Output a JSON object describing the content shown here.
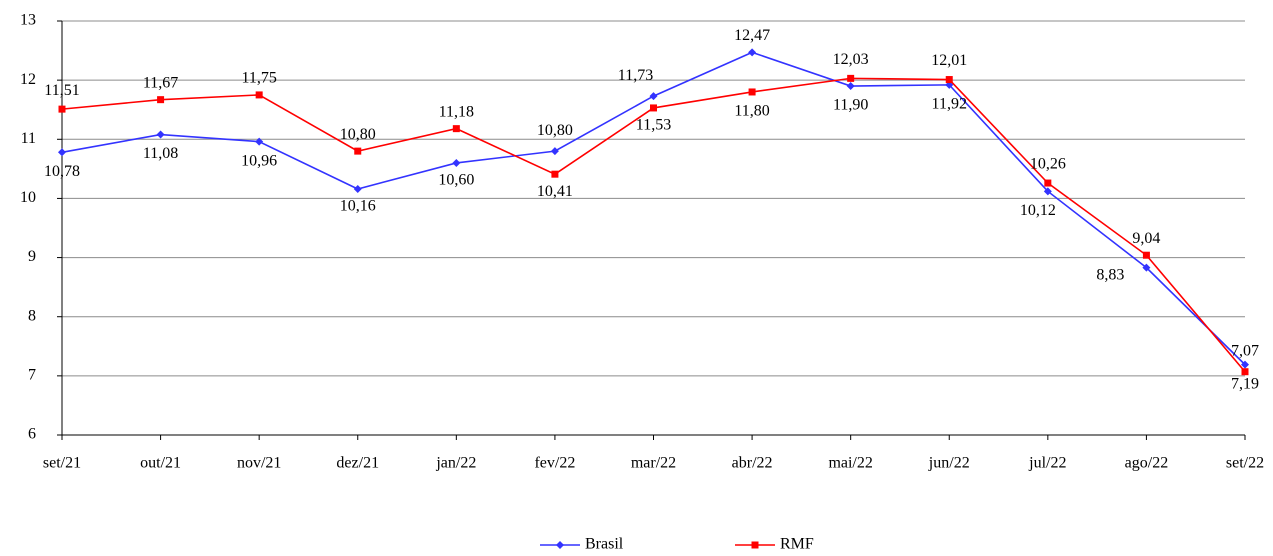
{
  "chart_data": {
    "type": "line",
    "categories": [
      "set/21",
      "out/21",
      "nov/21",
      "dez/21",
      "jan/22",
      "fev/22",
      "mar/22",
      "abr/22",
      "mai/22",
      "jun/22",
      "jul/22",
      "ago/22",
      "set/22"
    ],
    "series": [
      {
        "name": "Brasil",
        "color": "#3333ff",
        "values": [
          10.78,
          11.08,
          10.96,
          10.16,
          10.6,
          10.8,
          11.73,
          12.47,
          11.9,
          11.92,
          10.12,
          8.83,
          7.19
        ],
        "value_labels": [
          "10,78",
          "11,08",
          "10,96",
          "10,16",
          "10,60",
          "10,80",
          "11,73",
          "12,47",
          "11,90",
          "11,92",
          "10,12",
          "8,83",
          "7,19"
        ]
      },
      {
        "name": "RMF",
        "color": "#ff0000",
        "values": [
          11.51,
          11.67,
          11.75,
          10.8,
          11.18,
          10.41,
          11.53,
          11.8,
          12.03,
          12.01,
          10.26,
          9.04,
          7.07
        ],
        "value_labels": [
          "11,51",
          "11,67",
          "11,75",
          "10,80",
          "11,18",
          "10,41",
          "11,53",
          "11,80",
          "12,03",
          "12,01",
          "10,26",
          "9,04",
          "7,07"
        ]
      }
    ],
    "ylim": [
      6,
      13
    ],
    "yticks": [
      6,
      7,
      8,
      9,
      10,
      11,
      12,
      13
    ],
    "grid": true,
    "legend": "bottom"
  }
}
